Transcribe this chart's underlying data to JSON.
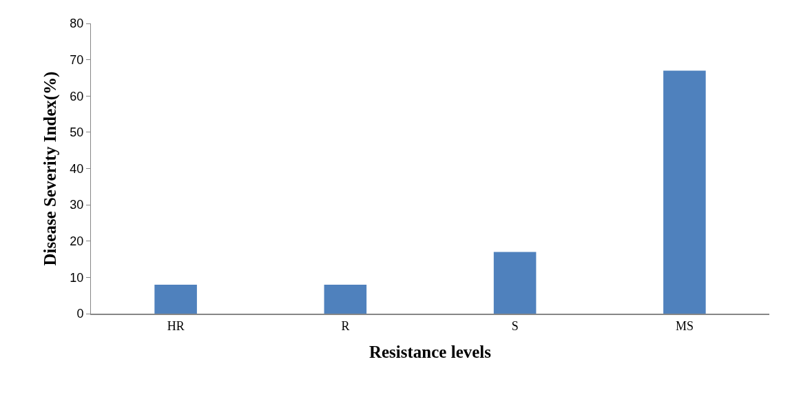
{
  "chart_data": {
    "type": "bar",
    "xlabel": "Resistance levels",
    "ylabel": "Disease Severity Index(%)",
    "categories": [
      "HR",
      "R",
      "S",
      "MS"
    ],
    "values": [
      8,
      8,
      17,
      67
    ],
    "color": "#4f81bd",
    "ylim": [
      0,
      80
    ],
    "yticks": [
      0,
      10,
      20,
      30,
      40,
      50,
      60,
      70,
      80
    ]
  }
}
